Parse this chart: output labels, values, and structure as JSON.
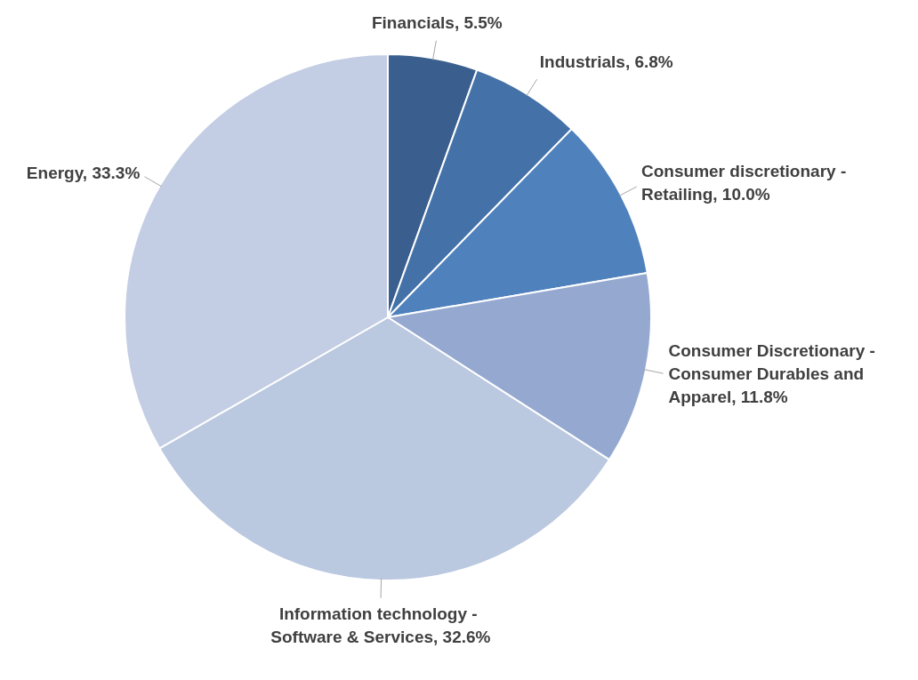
{
  "chart_data": {
    "type": "pie",
    "categories": [
      "Financials",
      "Industrials",
      "Consumer discretionary - Retailing",
      "Consumer Discretionary - Consumer Durables and Apparel",
      "Information technology -  Software & Services",
      "Energy"
    ],
    "values": [
      5.5,
      6.8,
      10.0,
      11.8,
      32.6,
      33.3
    ],
    "value_labels": [
      "5.5%",
      "6.8%",
      "10.0%",
      "11.8%",
      "32.6%",
      "33.3%"
    ],
    "colors": [
      "#3a5f8f",
      "#4472a8",
      "#4f81bd",
      "#95a9d0",
      "#bac8e0",
      "#c3cde3"
    ],
    "legend": false
  }
}
